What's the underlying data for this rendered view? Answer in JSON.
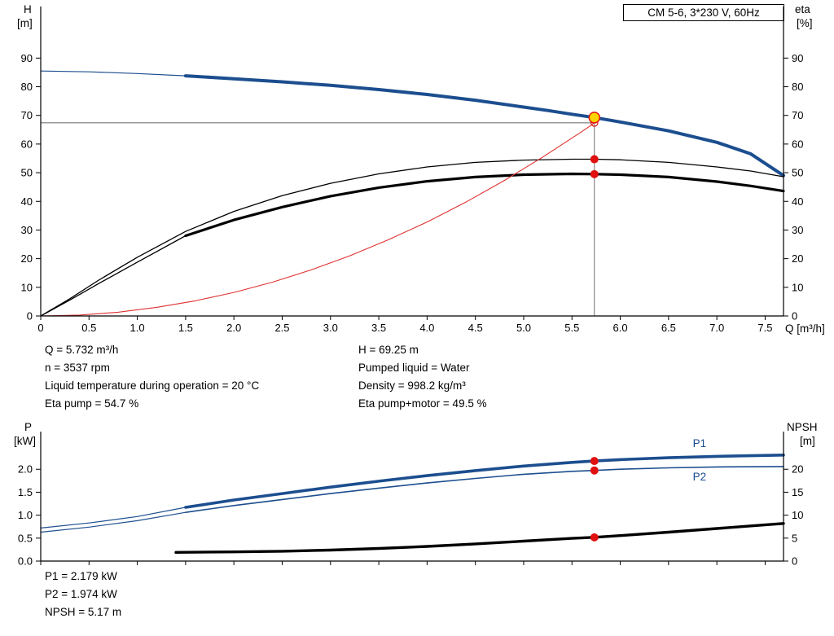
{
  "title_box": "CM 5-6, 3*230 V, 60Hz",
  "top_axis_labels": {
    "h": "H",
    "m": "[m]",
    "eta": "eta",
    "pct": "[%]",
    "q": "Q [m³/h]"
  },
  "bottom_axis_labels": {
    "p": "P",
    "kw": "[kW]",
    "npsh": "NPSH",
    "m": "[m]"
  },
  "annotations_top_left": [
    "Q = 5.732 m³/h",
    "n = 3537 rpm",
    "Liquid temperature during operation = 20 °C",
    "Eta pump = 54.7 %"
  ],
  "annotations_top_right": [
    "H = 69.25 m",
    "Pumped liquid = Water",
    "Density = 998.2 kg/m³",
    "Eta pump+motor = 49.5 %"
  ],
  "annotations_bottom": [
    "P1 = 2.179 kW",
    "P2 = 1.974 kW",
    "NPSH = 5.17 m"
  ],
  "colors": {
    "curve_blue": "#1c4e8f",
    "curve_black": "#000000",
    "curve_red": "#e03030",
    "marker_red": "#e01010",
    "duty_yellow": "#ffd400",
    "guide_gray": "#707070"
  },
  "chart_data": [
    {
      "name": "h-q-eta-chart",
      "type": "line",
      "title": "CM 5-6, 3*230 V, 60Hz",
      "x_axis": {
        "label": "Q [m³/h]",
        "min": 0,
        "max": 7.69,
        "ticks": [
          0,
          0.5,
          1,
          1.5,
          2,
          2.5,
          3,
          3.5,
          4,
          4.5,
          5,
          5.5,
          6,
          6.5,
          7,
          7.5
        ],
        "tick_labels": [
          "0",
          "0.5",
          "1.0",
          "1.5",
          "2.0",
          "2.5",
          "3.0",
          "3.5",
          "4.0",
          "4.5",
          "5.0",
          "5.5",
          "6.0",
          "6.5",
          "7.0",
          "7.5"
        ]
      },
      "y_left": {
        "label": "H [m]",
        "min": 0,
        "max": 108,
        "ticks": [
          0,
          10,
          20,
          30,
          40,
          50,
          60,
          70,
          80,
          90
        ],
        "tick_labels": [
          "0",
          "10",
          "20",
          "30",
          "40",
          "50",
          "60",
          "70",
          "80",
          "90"
        ]
      },
      "y_right": {
        "label": "eta [%]",
        "min": 0,
        "max": 108,
        "ticks": [
          0,
          10,
          20,
          30,
          40,
          50,
          60,
          70,
          80,
          90
        ],
        "tick_labels": [
          "0",
          "10",
          "20",
          "30",
          "40",
          "50",
          "60",
          "70",
          "80",
          "90"
        ]
      },
      "grid": false,
      "legend": "none",
      "series": [
        {
          "name": "head-curve-low-flow",
          "axis": "left",
          "color": "#1c4e8f",
          "width": 1.2,
          "points": [
            [
              0,
              85.5
            ],
            [
              0.5,
              85.2
            ],
            [
              1.0,
              84.6
            ],
            [
              1.5,
              83.8
            ]
          ]
        },
        {
          "name": "head-curve",
          "axis": "left",
          "color": "#1c4e8f",
          "width": 4,
          "points": [
            [
              1.5,
              83.8
            ],
            [
              2,
              82.8
            ],
            [
              2.5,
              81.7
            ],
            [
              3,
              80.5
            ],
            [
              3.5,
              79.0
            ],
            [
              4,
              77.3
            ],
            [
              4.5,
              75.3
            ],
            [
              5,
              72.9
            ],
            [
              5.25,
              71.7
            ],
            [
              5.5,
              70.4
            ],
            [
              5.732,
              69.25
            ],
            [
              6,
              67.7
            ],
            [
              6.5,
              64.6
            ],
            [
              7,
              60.6
            ],
            [
              7.35,
              56.6
            ],
            [
              7.69,
              49.0
            ]
          ]
        },
        {
          "name": "eta-pump-curve",
          "axis": "right",
          "color": "#000000",
          "width": 1.3,
          "points": [
            [
              0,
              0
            ],
            [
              0.3,
              6
            ],
            [
              0.6,
              12.5
            ],
            [
              1.0,
              20.5
            ],
            [
              1.5,
              29.5
            ],
            [
              2.0,
              36.5
            ],
            [
              2.5,
              42.0
            ],
            [
              3.0,
              46.3
            ],
            [
              3.5,
              49.6
            ],
            [
              4.0,
              52.0
            ],
            [
              4.5,
              53.6
            ],
            [
              5.0,
              54.4
            ],
            [
              5.5,
              54.7
            ],
            [
              5.732,
              54.7
            ],
            [
              6.0,
              54.5
            ],
            [
              6.5,
              53.6
            ],
            [
              7.0,
              52.0
            ],
            [
              7.35,
              50.6
            ],
            [
              7.69,
              48.6
            ]
          ]
        },
        {
          "name": "eta-pump-motor-curve-low-flow",
          "axis": "right",
          "color": "#000000",
          "width": 1.3,
          "points": [
            [
              0,
              0
            ],
            [
              0.3,
              5.5
            ],
            [
              0.6,
              11.3
            ],
            [
              1.0,
              18.8
            ],
            [
              1.5,
              28.0
            ]
          ]
        },
        {
          "name": "eta-pump-motor-curve",
          "axis": "right",
          "color": "#000000",
          "width": 3.2,
          "points": [
            [
              1.5,
              28.0
            ],
            [
              2.0,
              33.5
            ],
            [
              2.5,
              38.0
            ],
            [
              3.0,
              41.8
            ],
            [
              3.5,
              44.8
            ],
            [
              4.0,
              47.0
            ],
            [
              4.5,
              48.5
            ],
            [
              5.0,
              49.3
            ],
            [
              5.5,
              49.6
            ],
            [
              5.732,
              49.5
            ],
            [
              6.0,
              49.3
            ],
            [
              6.5,
              48.5
            ],
            [
              7.0,
              46.9
            ],
            [
              7.35,
              45.4
            ],
            [
              7.69,
              43.6
            ]
          ]
        },
        {
          "name": "system-curve",
          "axis": "left",
          "color": "#e03030",
          "width": 1.1,
          "points": [
            [
              0,
              0
            ],
            [
              0.4,
              0.3
            ],
            [
              0.8,
              1.3
            ],
            [
              1.2,
              3.0
            ],
            [
              1.6,
              5.3
            ],
            [
              2.0,
              8.2
            ],
            [
              2.4,
              11.8
            ],
            [
              2.8,
              16.1
            ],
            [
              3.2,
              21.0
            ],
            [
              3.6,
              26.6
            ],
            [
              4.0,
              32.8
            ],
            [
              4.4,
              39.7
            ],
            [
              4.8,
              47.3
            ],
            [
              5.2,
              55.5
            ],
            [
              5.6,
              64.3
            ],
            [
              5.732,
              67.4
            ]
          ]
        }
      ],
      "guides": [
        {
          "name": "duty-vertical-guide",
          "axis": "left",
          "from": [
            5.732,
            0
          ],
          "to": [
            5.732,
            69.25
          ],
          "color": "#707070",
          "width": 1
        },
        {
          "name": "duty-horizontal-guide",
          "axis": "left",
          "from": [
            0,
            67.4
          ],
          "to": [
            5.732,
            67.4
          ],
          "color": "#303030",
          "width": 0.8
        }
      ],
      "markers": [
        {
          "name": "requested-duty-point",
          "axis": "left",
          "x": 5.732,
          "y": 67.4,
          "r": 4.2,
          "fill": "none",
          "stroke": "#e01010",
          "stroke_width": 1.2
        },
        {
          "name": "duty-point",
          "axis": "left",
          "x": 5.732,
          "y": 69.25,
          "r": 6.5,
          "fill": "#ffd400",
          "stroke": "#e01010",
          "stroke_width": 1.5
        },
        {
          "name": "eta-pump-duty-point",
          "axis": "right",
          "x": 5.732,
          "y": 54.7,
          "r": 5,
          "fill": "#e01010",
          "stroke": "none",
          "stroke_width": 0
        },
        {
          "name": "eta-pump-motor-duty-point",
          "axis": "right",
          "x": 5.732,
          "y": 49.5,
          "r": 5,
          "fill": "#e01010",
          "stroke": "none",
          "stroke_width": 0
        }
      ],
      "labels": []
    },
    {
      "name": "power-npsh-chart",
      "type": "line",
      "title": "",
      "x_axis": {
        "label": "",
        "min": 0,
        "max": 7.69,
        "ticks": [
          0,
          0.5,
          1,
          1.5,
          2,
          2.5,
          3,
          3.5,
          4,
          4.5,
          5,
          5.5,
          6,
          6.5,
          7,
          7.5
        ],
        "tick_labels": []
      },
      "y_left": {
        "label": "P [kW]",
        "min": 0,
        "max": 2.82,
        "ticks": [
          0,
          0.5,
          1,
          1.5,
          2
        ],
        "tick_labels": [
          "0.0",
          "0.5",
          "1.0",
          "1.5",
          "2.0"
        ]
      },
      "y_right": {
        "label": "NPSH [m]",
        "min": 0,
        "max": 28.2,
        "ticks": [
          0,
          5,
          10,
          15,
          20
        ],
        "tick_labels": [
          "0",
          "5",
          "10",
          "15",
          "20"
        ]
      },
      "grid": false,
      "legend": "none",
      "series": [
        {
          "name": "p1-curve-low-flow",
          "axis": "left",
          "color": "#1c4e8f",
          "width": 1.2,
          "points": [
            [
              0,
              0.72
            ],
            [
              0.5,
              0.83
            ],
            [
              1.0,
              0.97
            ],
            [
              1.5,
              1.17
            ]
          ]
        },
        {
          "name": "p1-curve",
          "axis": "left",
          "color": "#1c4e8f",
          "width": 3.6,
          "points": [
            [
              1.5,
              1.17
            ],
            [
              2,
              1.33
            ],
            [
              2.5,
              1.47
            ],
            [
              3,
              1.61
            ],
            [
              3.5,
              1.74
            ],
            [
              4,
              1.86
            ],
            [
              4.5,
              1.97
            ],
            [
              5,
              2.07
            ],
            [
              5.5,
              2.15
            ],
            [
              5.732,
              2.179
            ],
            [
              6,
              2.21
            ],
            [
              6.5,
              2.25
            ],
            [
              7,
              2.28
            ],
            [
              7.69,
              2.31
            ]
          ]
        },
        {
          "name": "p2-curve-low-flow",
          "axis": "left",
          "color": "#1c4e8f",
          "width": 1.2,
          "points": [
            [
              0,
              0.63
            ],
            [
              0.5,
              0.74
            ],
            [
              1.0,
              0.88
            ],
            [
              1.5,
              1.06
            ]
          ]
        },
        {
          "name": "p2-curve",
          "axis": "left",
          "color": "#1c4e8f",
          "width": 1.6,
          "points": [
            [
              1.5,
              1.06
            ],
            [
              2,
              1.21
            ],
            [
              2.5,
              1.34
            ],
            [
              3,
              1.47
            ],
            [
              3.5,
              1.59
            ],
            [
              4,
              1.7
            ],
            [
              4.5,
              1.8
            ],
            [
              5,
              1.89
            ],
            [
              5.5,
              1.955
            ],
            [
              5.732,
              1.974
            ],
            [
              6,
              2.0
            ],
            [
              6.5,
              2.03
            ],
            [
              7,
              2.05
            ],
            [
              7.69,
              2.06
            ]
          ]
        },
        {
          "name": "npsh-curve",
          "axis": "right",
          "color": "#000000",
          "width": 3.4,
          "points": [
            [
              1.4,
              1.9
            ],
            [
              2,
              2.0
            ],
            [
              2.5,
              2.15
            ],
            [
              3,
              2.4
            ],
            [
              3.5,
              2.75
            ],
            [
              4,
              3.2
            ],
            [
              4.5,
              3.75
            ],
            [
              5,
              4.35
            ],
            [
              5.5,
              4.95
            ],
            [
              5.732,
              5.17
            ],
            [
              6,
              5.55
            ],
            [
              6.5,
              6.3
            ],
            [
              7,
              7.1
            ],
            [
              7.69,
              8.2
            ]
          ]
        }
      ],
      "guides": [],
      "markers": [
        {
          "name": "p1-duty-point",
          "axis": "left",
          "x": 5.732,
          "y": 2.179,
          "r": 5,
          "fill": "#e01010",
          "stroke": "none",
          "stroke_width": 0
        },
        {
          "name": "p2-duty-point",
          "axis": "left",
          "x": 5.732,
          "y": 1.974,
          "r": 5,
          "fill": "#e01010",
          "stroke": "none",
          "stroke_width": 0
        },
        {
          "name": "npsh-duty-point",
          "axis": "right",
          "x": 5.732,
          "y": 5.17,
          "r": 5,
          "fill": "#e01010",
          "stroke": "none",
          "stroke_width": 0
        }
      ],
      "labels": [
        {
          "name": "p1-series-label",
          "text": "P1",
          "axis": "left",
          "x": 6.82,
          "y": 2.48,
          "color": "#1c4e8f"
        },
        {
          "name": "p2-series-label",
          "text": "P2",
          "axis": "left",
          "x": 6.82,
          "y": 1.76,
          "color": "#1c4e8f"
        }
      ]
    }
  ]
}
